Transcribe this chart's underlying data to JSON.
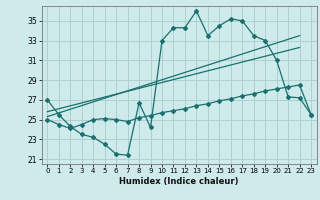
{
  "title": "",
  "xlabel": "Humidex (Indice chaleur)",
  "bg_color": "#ceeaea",
  "grid_color": "#aed0d0",
  "line_color": "#1a7070",
  "xlim": [
    -0.5,
    23.5
  ],
  "ylim": [
    20.5,
    36.5
  ],
  "xticks": [
    0,
    1,
    2,
    3,
    4,
    5,
    6,
    7,
    8,
    9,
    10,
    11,
    12,
    13,
    14,
    15,
    16,
    17,
    18,
    19,
    20,
    21,
    22,
    23
  ],
  "yticks": [
    21,
    23,
    25,
    27,
    29,
    31,
    33,
    35
  ],
  "curve1_x": [
    0,
    1,
    2,
    3,
    4,
    5,
    6,
    7,
    8,
    9,
    10,
    11,
    12,
    13,
    14,
    15,
    16,
    17,
    18,
    19,
    20,
    21,
    22,
    23
  ],
  "curve1_y": [
    27.0,
    25.5,
    24.3,
    23.5,
    23.2,
    22.5,
    21.5,
    21.4,
    26.7,
    24.2,
    33.0,
    34.3,
    34.3,
    36.0,
    33.5,
    34.5,
    35.2,
    35.0,
    33.5,
    33.0,
    31.0,
    27.3,
    27.2,
    25.5
  ],
  "curve2_x": [
    0,
    1,
    2,
    3,
    4,
    5,
    6,
    7,
    8,
    9,
    10,
    11,
    12,
    13,
    14,
    15,
    16,
    17,
    18,
    19,
    20,
    21,
    22,
    23
  ],
  "curve2_y": [
    25.0,
    24.5,
    24.1,
    24.5,
    25.0,
    25.1,
    25.0,
    24.8,
    25.2,
    25.4,
    25.7,
    25.9,
    26.1,
    26.4,
    26.6,
    26.9,
    27.1,
    27.4,
    27.6,
    27.9,
    28.1,
    28.3,
    28.5,
    25.5
  ],
  "line1_x": [
    0,
    22
  ],
  "line1_y": [
    25.3,
    33.5
  ],
  "line2_x": [
    0,
    22
  ],
  "line2_y": [
    25.8,
    32.3
  ]
}
